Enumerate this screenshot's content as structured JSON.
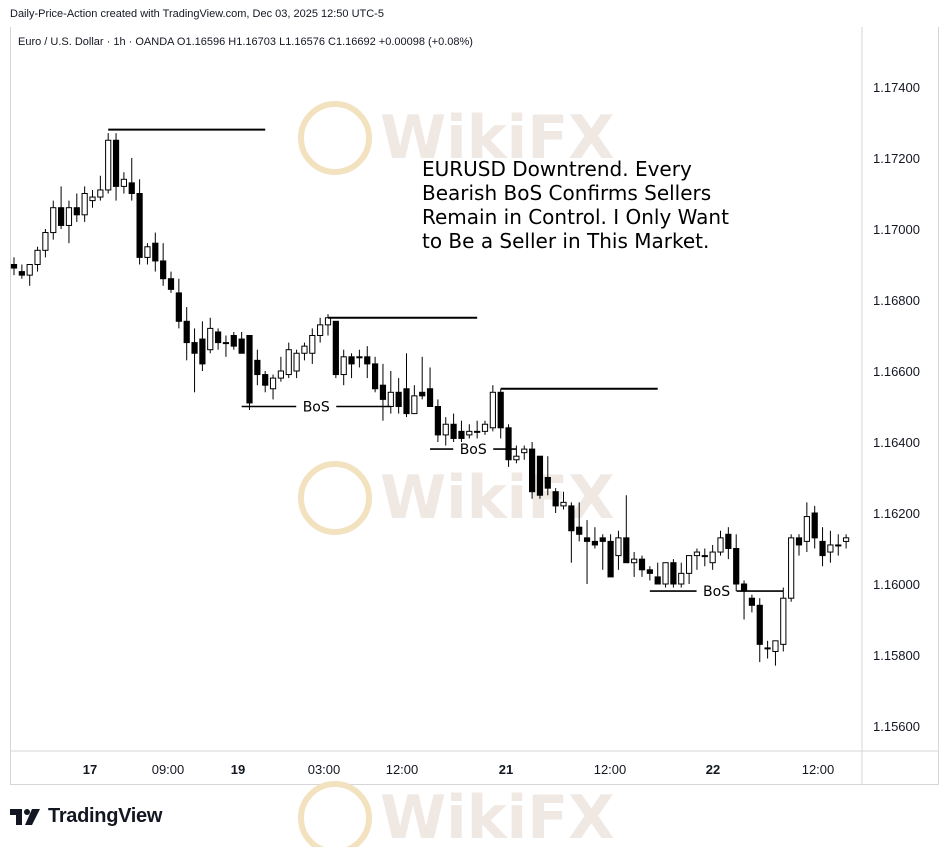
{
  "header": {
    "credit": "Daily-Price-Action created with TradingView.com, Dec 03, 2025 12:50 UTC-5"
  },
  "symbol_bar": {
    "text": "Euro / U.S. Dollar · 1h · OANDA  O1.16596  H1.16703  L1.16576  C1.16692  +0.00098 (+0.08%)"
  },
  "annotation": {
    "lines": [
      "EURUSD Downtrend. Every",
      "Bearish BoS Confirms Sellers",
      "Remain in Control. I Only Want",
      "to Be a Seller in This Market."
    ]
  },
  "footer": {
    "brand": "TradingView"
  },
  "watermark": "WikiFX",
  "colors": {
    "bull_body": "#ffffff",
    "bear_body": "#000000",
    "wick": "#000000",
    "grid_axis": "#d6d6d6"
  },
  "chart_data": {
    "type": "candlestick",
    "title": "Euro / U.S. Dollar · 1h · OANDA",
    "ylim": [
      1.1552,
      1.176
    ],
    "y_ticks": [
      "1.17400",
      "1.17200",
      "1.17000",
      "1.16800",
      "1.16600",
      "1.16400",
      "1.16200",
      "1.16000",
      "1.15800",
      "1.15600"
    ],
    "x_tick_labels": [
      "17",
      "09:00",
      "19",
      "03:00",
      "12:00",
      "21",
      "12:00",
      "22",
      "12:00"
    ],
    "ohlc": [
      [
        1.169,
        1.1692,
        1.1687,
        1.1689
      ],
      [
        1.1688,
        1.169,
        1.1686,
        1.1687
      ],
      [
        1.1687,
        1.169,
        1.1684,
        1.169
      ],
      [
        1.169,
        1.1695,
        1.1688,
        1.1694
      ],
      [
        1.1694,
        1.17,
        1.1692,
        1.1699
      ],
      [
        1.1699,
        1.1708,
        1.1697,
        1.1706
      ],
      [
        1.1706,
        1.1712,
        1.17,
        1.1701
      ],
      [
        1.1701,
        1.1708,
        1.1696,
        1.1706
      ],
      [
        1.1706,
        1.171,
        1.1702,
        1.1704
      ],
      [
        1.1704,
        1.1712,
        1.1702,
        1.171
      ],
      [
        1.1708,
        1.1711,
        1.1706,
        1.1709
      ],
      [
        1.1709,
        1.1715,
        1.1708,
        1.1711
      ],
      [
        1.1711,
        1.1727,
        1.171,
        1.1725
      ],
      [
        1.1725,
        1.1727,
        1.1708,
        1.1712
      ],
      [
        1.1712,
        1.1716,
        1.171,
        1.1714
      ],
      [
        1.1713,
        1.172,
        1.1708,
        1.171
      ],
      [
        1.171,
        1.1714,
        1.169,
        1.1692
      ],
      [
        1.1692,
        1.1696,
        1.169,
        1.1695
      ],
      [
        1.1696,
        1.1699,
        1.1688,
        1.1691
      ],
      [
        1.1691,
        1.1696,
        1.1684,
        1.1686
      ],
      [
        1.1686,
        1.1688,
        1.1682,
        1.1683
      ],
      [
        1.1682,
        1.1686,
        1.1672,
        1.1674
      ],
      [
        1.1674,
        1.1678,
        1.1663,
        1.1668
      ],
      [
        1.1668,
        1.1672,
        1.1654,
        1.1665
      ],
      [
        1.1669,
        1.1674,
        1.166,
        1.1662
      ],
      [
        1.1666,
        1.1675,
        1.1665,
        1.1672
      ],
      [
        1.1671,
        1.1672,
        1.1666,
        1.1668
      ],
      [
        1.1668,
        1.167,
        1.1664,
        1.1668
      ],
      [
        1.167,
        1.1671,
        1.1666,
        1.1667
      ],
      [
        1.1669,
        1.1671,
        1.1665,
        1.1665
      ],
      [
        1.167,
        1.167,
        1.1649,
        1.1651
      ],
      [
        1.1663,
        1.1666,
        1.1656,
        1.1659
      ],
      [
        1.1659,
        1.166,
        1.1654,
        1.1656
      ],
      [
        1.1655,
        1.1659,
        1.1652,
        1.1658
      ],
      [
        1.1658,
        1.1664,
        1.1657,
        1.166
      ],
      [
        1.1659,
        1.1668,
        1.1658,
        1.1666
      ],
      [
        1.166,
        1.1666,
        1.1658,
        1.1665
      ],
      [
        1.1665,
        1.1668,
        1.1663,
        1.1667
      ],
      [
        1.1665,
        1.1672,
        1.1662,
        1.167
      ],
      [
        1.167,
        1.1675,
        1.1668,
        1.1673
      ],
      [
        1.1673,
        1.1676,
        1.167,
        1.1675
      ],
      [
        1.1674,
        1.1674,
        1.1658,
        1.1659
      ],
      [
        1.1659,
        1.1666,
        1.1656,
        1.1664
      ],
      [
        1.1664,
        1.1665,
        1.1658,
        1.1662
      ],
      [
        1.1664,
        1.1666,
        1.1661,
        1.1664
      ],
      [
        1.1664,
        1.1667,
        1.1658,
        1.1662
      ],
      [
        1.1662,
        1.1664,
        1.1654,
        1.1655
      ],
      [
        1.1656,
        1.1662,
        1.1646,
        1.1652
      ],
      [
        1.165,
        1.166,
        1.1648,
        1.1654
      ],
      [
        1.1654,
        1.1658,
        1.1648,
        1.165
      ],
      [
        1.1655,
        1.1665,
        1.1647,
        1.1648
      ],
      [
        1.1648,
        1.1656,
        1.165,
        1.1653
      ],
      [
        1.1654,
        1.1664,
        1.1652,
        1.1653
      ],
      [
        1.1655,
        1.1661,
        1.1651,
        1.165
      ],
      [
        1.165,
        1.1652,
        1.164,
        1.1642
      ],
      [
        1.1642,
        1.1647,
        1.1639,
        1.1645
      ],
      [
        1.1645,
        1.1648,
        1.164,
        1.1641
      ],
      [
        1.1643,
        1.1646,
        1.164,
        1.1641
      ],
      [
        1.1642,
        1.1645,
        1.1641,
        1.1643
      ],
      [
        1.1643,
        1.1646,
        1.1641,
        1.1643
      ],
      [
        1.1643,
        1.1646,
        1.1642,
        1.1645
      ],
      [
        1.1644,
        1.1656,
        1.1643,
        1.1654
      ],
      [
        1.1654,
        1.1655,
        1.1641,
        1.1644
      ],
      [
        1.1644,
        1.1645,
        1.1633,
        1.1635
      ],
      [
        1.1635,
        1.1639,
        1.1634,
        1.1636
      ],
      [
        1.1637,
        1.1639,
        1.1635,
        1.1638
      ],
      [
        1.1638,
        1.164,
        1.1624,
        1.1626
      ],
      [
        1.1636,
        1.1636,
        1.1624,
        1.1625
      ],
      [
        1.163,
        1.1636,
        1.1625,
        1.1627
      ],
      [
        1.1626,
        1.1627,
        1.162,
        1.1622
      ],
      [
        1.1622,
        1.1626,
        1.1621,
        1.1623
      ],
      [
        1.1622,
        1.1623,
        1.1606,
        1.1615
      ],
      [
        1.1616,
        1.1623,
        1.1612,
        1.1614
      ],
      [
        1.1613,
        1.1618,
        1.16,
        1.1612
      ],
      [
        1.1612,
        1.1616,
        1.161,
        1.1611
      ],
      [
        1.1613,
        1.1614,
        1.1604,
        1.1612
      ],
      [
        1.1612,
        1.1614,
        1.1602,
        1.1602
      ],
      [
        1.1608,
        1.1615,
        1.1604,
        1.1613
      ],
      [
        1.1613,
        1.1625,
        1.1608,
        1.1606
      ],
      [
        1.1606,
        1.1609,
        1.1602,
        1.1607
      ],
      [
        1.1607,
        1.1608,
        1.1602,
        1.1604
      ],
      [
        1.1604,
        1.1605,
        1.1601,
        1.1603
      ],
      [
        1.1602,
        1.1606,
        1.16,
        1.16
      ],
      [
        1.16,
        1.1606,
        1.1599,
        1.1606
      ],
      [
        1.1606,
        1.1607,
        1.1599,
        1.16
      ],
      [
        1.16,
        1.1606,
        1.1599,
        1.1603
      ],
      [
        1.1603,
        1.1608,
        1.16,
        1.1608
      ],
      [
        1.1608,
        1.161,
        1.1604,
        1.1609
      ],
      [
        1.1608,
        1.161,
        1.1605,
        1.1608
      ],
      [
        1.1606,
        1.1611,
        1.1604,
        1.1609
      ],
      [
        1.1609,
        1.1615,
        1.1608,
        1.1613
      ],
      [
        1.1614,
        1.1616,
        1.1607,
        1.161
      ],
      [
        1.161,
        1.1614,
        1.1598,
        1.16
      ],
      [
        1.16,
        1.1601,
        1.159,
        1.1598
      ],
      [
        1.1596,
        1.1597,
        1.1592,
        1.1594
      ],
      [
        1.1594,
        1.1596,
        1.1578,
        1.1583
      ],
      [
        1.1582,
        1.1584,
        1.1579,
        1.1582
      ],
      [
        1.1581,
        1.1584,
        1.1577,
        1.1584
      ],
      [
        1.1583,
        1.1599,
        1.1581,
        1.1596
      ],
      [
        1.1596,
        1.1614,
        1.1595,
        1.1613
      ],
      [
        1.1613,
        1.1614,
        1.1608,
        1.1611
      ],
      [
        1.1612,
        1.1623,
        1.1609,
        1.1619
      ],
      [
        1.162,
        1.1622,
        1.161,
        1.1613
      ],
      [
        1.1612,
        1.1616,
        1.1605,
        1.1608
      ],
      [
        1.1609,
        1.1615,
        1.1606,
        1.1611
      ],
      [
        1.1611,
        1.1614,
        1.1608,
        1.1611
      ],
      [
        1.1612,
        1.1614,
        1.161,
        1.1613
      ]
    ],
    "horizontal_levels": [
      {
        "price": 1.1728,
        "from": 12,
        "to": 32
      },
      {
        "price": 1.1675,
        "from": 40,
        "to": 59
      },
      {
        "price": 1.1655,
        "from": 62,
        "to": 82
      },
      {
        "price": 1.165,
        "from": 29,
        "to": 48,
        "label": "BoS"
      },
      {
        "price": 1.1638,
        "from": 53,
        "to": 64,
        "label": "BoS"
      },
      {
        "price": 1.1598,
        "from": 81,
        "to": 98,
        "label": "BoS"
      }
    ]
  }
}
